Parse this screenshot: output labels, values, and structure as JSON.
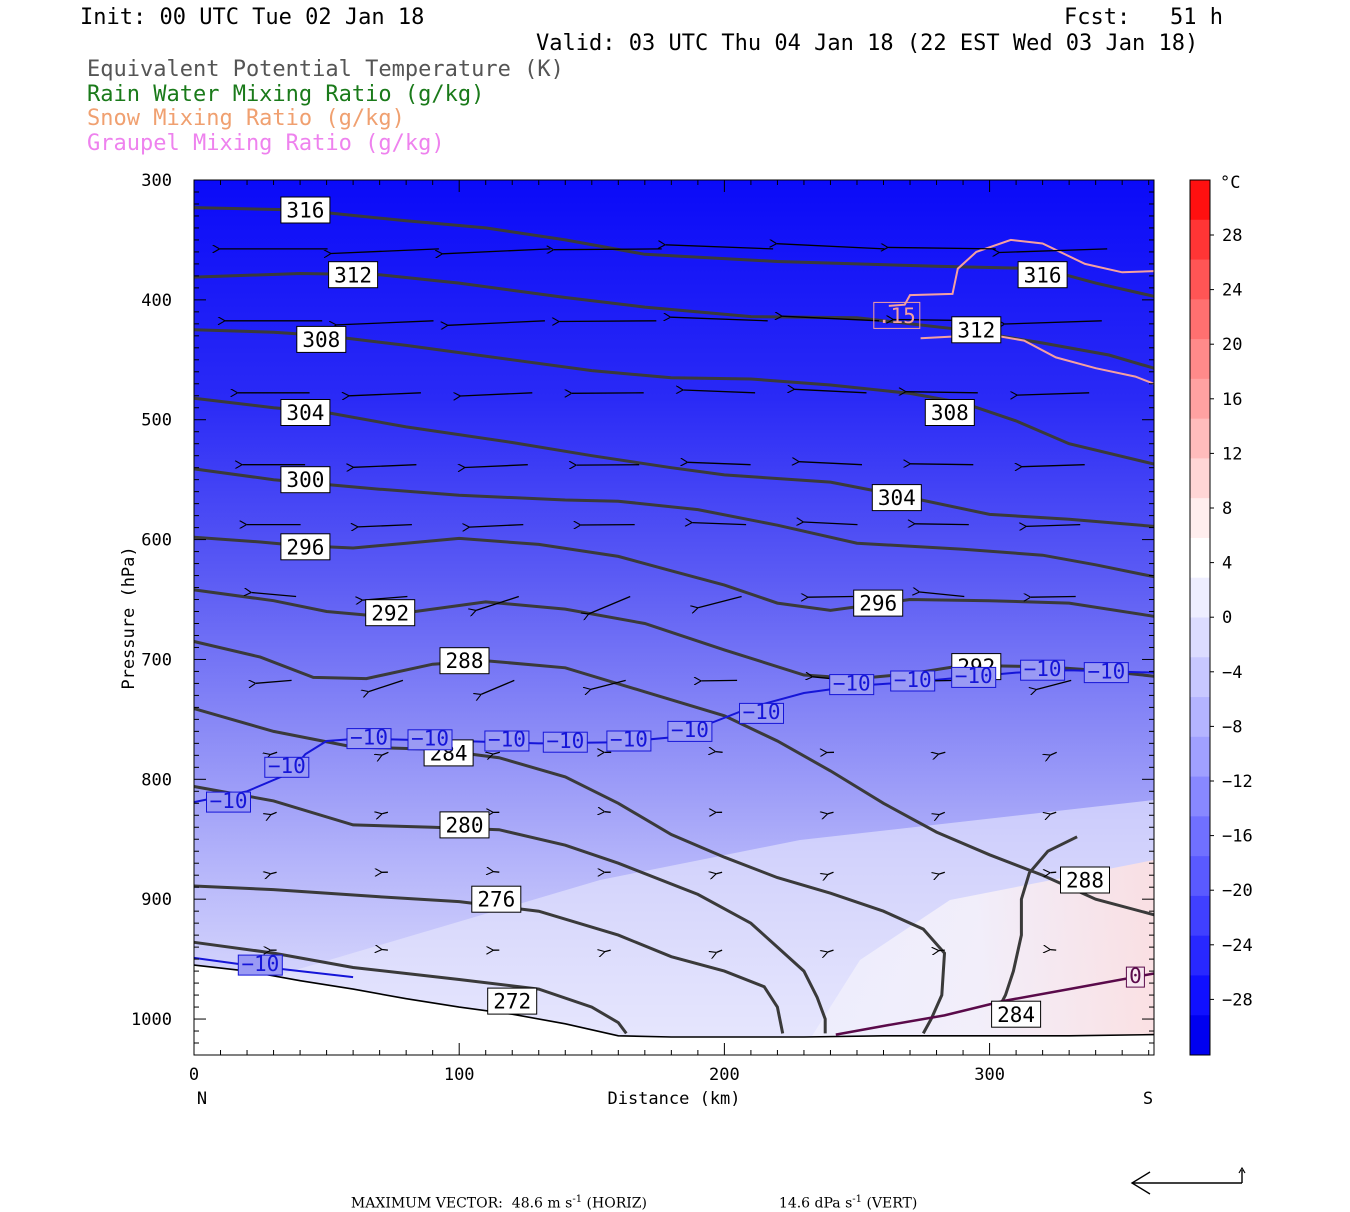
{
  "header": {
    "init": "Init: 00 UTC Tue 02 Jan 18",
    "fcst": "Fcst:   51 h",
    "valid": "Valid: 03 UTC Thu 04 Jan 18 (22 EST Wed 03 Jan 18)",
    "fields": [
      {
        "text": "Equivalent Potential Temperature (K)",
        "color": "#555555"
      },
      {
        "text": "Rain Water Mixing Ratio (g/kg)",
        "color": "#1a7a1a"
      },
      {
        "text": "Snow Mixing Ratio (g/kg)",
        "color": "#f0a070"
      },
      {
        "text": "Graupel Mixing Ratio (g/kg)",
        "color": "#ee82ee"
      }
    ]
  },
  "footer": {
    "label": "MAXIMUM VECTOR:",
    "horiz": "48.6 m s",
    "horiz_suffix": " (HORIZ)",
    "vert": "14.6 dPa s",
    "vert_suffix": " (VERT)",
    "exp": "-1"
  },
  "chart_data": {
    "type": "cross-section contour",
    "x_axis": {
      "label": "Distance (km)",
      "range": [
        0,
        362
      ],
      "ticks": [
        0,
        100,
        200,
        300
      ],
      "left_end": "N",
      "right_end": "S"
    },
    "y_axis": {
      "label": "Pressure (hPa)",
      "range": [
        300,
        1030
      ],
      "ticks": [
        300,
        400,
        500,
        600,
        700,
        800,
        900,
        1000
      ],
      "inverted": true
    },
    "colorbar": {
      "unit": "°C",
      "labels": [
        28,
        24,
        20,
        16,
        12,
        8,
        4,
        0,
        -4,
        -8,
        -12,
        -16,
        -20,
        -24,
        -28
      ],
      "colors": [
        "#ff1010",
        "#ff3535",
        "#ff5555",
        "#ff7070",
        "#ff8a8a",
        "#ffa2a2",
        "#ffbcbc",
        "#ffd6d6",
        "#ffeeee",
        "#ffffff",
        "#eeeeff",
        "#dcdcff",
        "#c8c8ff",
        "#b4b4ff",
        "#a0a0ff",
        "#8888ff",
        "#7070ff",
        "#5a5aff",
        "#4040ff",
        "#2828ff",
        "#1010ff",
        "#0000f0"
      ]
    },
    "theta_e_contours": [
      {
        "value": 316,
        "points": [
          [
            0,
            323
          ],
          [
            40,
            325
          ],
          [
            80,
            334
          ],
          [
            110,
            340
          ],
          [
            140,
            350
          ],
          [
            170,
            362
          ],
          [
            220,
            368
          ],
          [
            280,
            372
          ],
          [
            320,
            374
          ],
          [
            340,
            386
          ],
          [
            362,
            397
          ]
        ],
        "labels": [
          [
            42,
            325
          ],
          [
            320,
            379
          ]
        ]
      },
      {
        "value": 312,
        "points": [
          [
            0,
            381
          ],
          [
            40,
            378
          ],
          [
            70,
            379
          ],
          [
            100,
            386
          ],
          [
            140,
            398
          ],
          [
            170,
            406
          ],
          [
            210,
            414
          ],
          [
            250,
            415
          ],
          [
            290,
            425
          ],
          [
            320,
            436
          ],
          [
            345,
            446
          ],
          [
            362,
            457
          ]
        ],
        "labels": [
          [
            60,
            379
          ],
          [
            295,
            425
          ]
        ]
      },
      {
        "value": 308,
        "points": [
          [
            0,
            425
          ],
          [
            30,
            427
          ],
          [
            50,
            430
          ],
          [
            80,
            438
          ],
          [
            120,
            450
          ],
          [
            150,
            459
          ],
          [
            180,
            465
          ],
          [
            210,
            466
          ],
          [
            240,
            471
          ],
          [
            270,
            478
          ],
          [
            290,
            486
          ],
          [
            310,
            501
          ],
          [
            330,
            520
          ],
          [
            362,
            537
          ]
        ],
        "labels": [
          [
            48,
            433
          ],
          [
            285,
            494
          ]
        ]
      },
      {
        "value": 304,
        "points": [
          [
            0,
            482
          ],
          [
            30,
            490
          ],
          [
            50,
            494
          ],
          [
            80,
            506
          ],
          [
            120,
            519
          ],
          [
            150,
            530
          ],
          [
            180,
            540
          ],
          [
            200,
            546
          ],
          [
            240,
            552
          ],
          [
            270,
            565
          ],
          [
            300,
            579
          ],
          [
            330,
            583
          ],
          [
            362,
            589
          ]
        ],
        "labels": [
          [
            42,
            494
          ],
          [
            265,
            565
          ]
        ]
      },
      {
        "value": 300,
        "points": [
          [
            0,
            541
          ],
          [
            30,
            550
          ],
          [
            70,
            558
          ],
          [
            100,
            563
          ],
          [
            140,
            567
          ],
          [
            160,
            568
          ],
          [
            190,
            575
          ],
          [
            220,
            588
          ],
          [
            250,
            603
          ],
          [
            290,
            608
          ],
          [
            320,
            613
          ],
          [
            340,
            621
          ],
          [
            362,
            631
          ]
        ],
        "labels": [
          [
            42,
            550
          ]
        ]
      },
      {
        "value": 296,
        "points": [
          [
            0,
            598
          ],
          [
            25,
            602
          ],
          [
            40,
            605
          ],
          [
            60,
            607
          ],
          [
            80,
            603
          ],
          [
            100,
            599
          ],
          [
            130,
            604
          ],
          [
            160,
            614
          ],
          [
            180,
            626
          ],
          [
            200,
            638
          ],
          [
            220,
            653
          ],
          [
            240,
            659
          ],
          [
            270,
            650
          ],
          [
            300,
            651
          ],
          [
            330,
            653
          ],
          [
            362,
            664
          ]
        ],
        "labels": [
          [
            42,
            606
          ],
          [
            258,
            653
          ]
        ]
      },
      {
        "value": 292,
        "points": [
          [
            0,
            642
          ],
          [
            30,
            651
          ],
          [
            50,
            660
          ],
          [
            70,
            664
          ],
          [
            90,
            658
          ],
          [
            110,
            652
          ],
          [
            140,
            658
          ],
          [
            170,
            670
          ],
          [
            200,
            692
          ],
          [
            230,
            713
          ],
          [
            250,
            716
          ],
          [
            270,
            712
          ],
          [
            290,
            705
          ],
          [
            320,
            706
          ],
          [
            340,
            709
          ],
          [
            362,
            714
          ]
        ],
        "labels": [
          [
            74,
            661
          ],
          [
            295,
            706
          ]
        ]
      },
      {
        "value": 288,
        "points": [
          [
            0,
            685
          ],
          [
            25,
            698
          ],
          [
            45,
            715
          ],
          [
            65,
            716
          ],
          [
            90,
            704
          ],
          [
            110,
            701
          ],
          [
            140,
            707
          ],
          [
            170,
            727
          ],
          [
            200,
            747
          ],
          [
            220,
            768
          ],
          [
            240,
            793
          ],
          [
            260,
            820
          ],
          [
            280,
            844
          ],
          [
            300,
            863
          ],
          [
            320,
            880
          ],
          [
            340,
            900
          ],
          [
            362,
            913
          ]
        ],
        "labels": [
          [
            102,
            701
          ],
          [
            336,
            884
          ]
        ]
      },
      {
        "value": 284,
        "points": [
          [
            0,
            741
          ],
          [
            30,
            760
          ],
          [
            60,
            773
          ],
          [
            90,
            775
          ],
          [
            115,
            782
          ],
          [
            140,
            798
          ],
          [
            160,
            820
          ],
          [
            180,
            846
          ],
          [
            200,
            865
          ],
          [
            220,
            882
          ],
          [
            240,
            895
          ],
          [
            260,
            910
          ],
          [
            275,
            925
          ],
          [
            283,
            945
          ],
          [
            282,
            980
          ],
          [
            278,
            1000
          ],
          [
            275,
            1012
          ]
        ],
        "labels": [
          [
            96,
            778
          ]
        ]
      },
      {
        "value": 280,
        "points": [
          [
            0,
            806
          ],
          [
            30,
            818
          ],
          [
            60,
            838
          ],
          [
            90,
            840
          ],
          [
            115,
            842
          ],
          [
            140,
            855
          ],
          [
            160,
            870
          ],
          [
            190,
            896
          ],
          [
            210,
            920
          ],
          [
            220,
            940
          ],
          [
            230,
            960
          ],
          [
            235,
            982
          ],
          [
            238,
            1000
          ],
          [
            238,
            1012
          ]
        ],
        "labels": [
          [
            102,
            838
          ]
        ]
      },
      {
        "value": 276,
        "points": [
          [
            0,
            889
          ],
          [
            30,
            892
          ],
          [
            70,
            898
          ],
          [
            100,
            902
          ],
          [
            130,
            910
          ],
          [
            160,
            930
          ],
          [
            180,
            948
          ],
          [
            200,
            960
          ],
          [
            215,
            973
          ],
          [
            220,
            990
          ],
          [
            222,
            1012
          ]
        ],
        "labels": [
          [
            114,
            900
          ]
        ]
      },
      {
        "value": 272,
        "points": [
          [
            0,
            936
          ],
          [
            30,
            945
          ],
          [
            60,
            957
          ],
          [
            100,
            967
          ],
          [
            130,
            975
          ],
          [
            150,
            990
          ],
          [
            160,
            1003
          ],
          [
            163,
            1012
          ]
        ],
        "labels": [
          [
            120,
            985
          ]
        ]
      },
      {
        "value": 284,
        "points": [
          [
            302,
            997
          ],
          [
            306,
            980
          ],
          [
            309,
            960
          ],
          [
            312,
            930
          ],
          [
            312,
            900
          ],
          [
            315,
            878
          ],
          [
            322,
            860
          ],
          [
            333,
            848
          ]
        ],
        "labels": [
          [
            310,
            996
          ]
        ]
      }
    ],
    "isotherms": [
      {
        "value": -10,
        "points": [
          [
            0,
            819
          ],
          [
            20,
            810
          ],
          [
            36,
            795
          ],
          [
            42,
            779
          ],
          [
            50,
            768
          ],
          [
            62,
            766
          ],
          [
            80,
            767
          ],
          [
            100,
            768
          ],
          [
            130,
            770
          ],
          [
            160,
            769
          ],
          [
            180,
            765
          ],
          [
            195,
            753
          ],
          [
            210,
            740
          ],
          [
            230,
            728
          ],
          [
            250,
            722
          ],
          [
            270,
            719
          ],
          [
            290,
            715
          ],
          [
            310,
            711
          ],
          [
            330,
            709
          ],
          [
            362,
            711
          ]
        ],
        "labels": [
          [
            13,
            819
          ],
          [
            35,
            790
          ],
          [
            66,
            766
          ],
          [
            89,
            767
          ],
          [
            118,
            768
          ],
          [
            140,
            769
          ],
          [
            164,
            768
          ],
          [
            187,
            760
          ],
          [
            214,
            745
          ],
          [
            248,
            721
          ],
          [
            271,
            718
          ],
          [
            294,
            715
          ],
          [
            320,
            709
          ],
          [
            344,
            711
          ]
        ]
      },
      {
        "value": -10,
        "points": [
          [
            0,
            949
          ],
          [
            20,
            955
          ],
          [
            40,
            960
          ],
          [
            60,
            965
          ]
        ],
        "labels": [
          [
            25,
            955
          ]
        ]
      },
      {
        "value": 0,
        "points": [
          [
            242,
            1013
          ],
          [
            262,
            1005
          ],
          [
            283,
            997
          ],
          [
            305,
            985
          ],
          [
            330,
            975
          ],
          [
            362,
            962
          ]
        ],
        "labels": [
          [
            355,
            965
          ]
        ]
      }
    ],
    "snow_contours": [
      {
        "value": 0.15,
        "points": [
          [
            362,
            376
          ],
          [
            350,
            377
          ],
          [
            336,
            370
          ],
          [
            320,
            353
          ],
          [
            308,
            350
          ],
          [
            295,
            360
          ],
          [
            288,
            374
          ],
          [
            286,
            395
          ],
          [
            270,
            396
          ],
          [
            268,
            404
          ],
          [
            262,
            405
          ]
        ],
        "labels": [
          [
            265,
            413
          ]
        ]
      },
      {
        "value": 0.15,
        "points": [
          [
            274,
            432
          ],
          [
            300,
            429
          ],
          [
            313,
            434
          ],
          [
            325,
            448
          ],
          [
            340,
            457
          ],
          [
            355,
            464
          ],
          [
            362,
            470
          ]
        ]
      }
    ],
    "terrain": [
      [
        0,
        955
      ],
      [
        20,
        960
      ],
      [
        40,
        968
      ],
      [
        60,
        975
      ],
      [
        80,
        983
      ],
      [
        100,
        990
      ],
      [
        120,
        996
      ],
      [
        140,
        1004
      ],
      [
        160,
        1014
      ],
      [
        180,
        1015
      ],
      [
        200,
        1015
      ],
      [
        230,
        1015
      ],
      [
        260,
        1014
      ],
      [
        300,
        1014
      ],
      [
        330,
        1014
      ],
      [
        362,
        1013
      ]
    ],
    "max_vector": {
      "horiz_m_s": 48.6,
      "vert_dPa_s": 14.6
    }
  }
}
